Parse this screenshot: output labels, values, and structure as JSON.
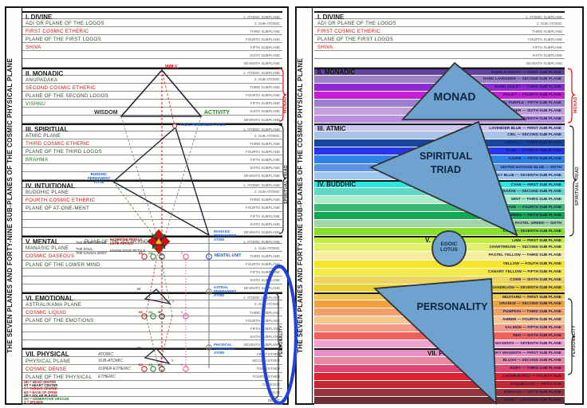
{
  "vertical_title": "THE SEVEN PLANES AND FORTY-NINE SUB-PLANES OF THE COSMIC PHYSICAL PLANE",
  "subplane_labels": [
    "1. ATOMIC SUBPLANE",
    "2. SUB-ATOMIC",
    "THIRD SUBPLANE",
    "FOURTH SUBPLANE",
    "FIFTH SUBPLANE",
    "SIXTH SUBPLANE",
    "SEVENTH SUBPLANE"
  ],
  "ether_labels": [
    "FIRST ETHER",
    "SECOND ETHER",
    "THIRD ETHER",
    "FOURTH ETHER",
    "GASEOUS",
    "LIQUID",
    "DENSE"
  ],
  "colors": {
    "red": "#c41414",
    "green": "#1a7a1a",
    "dark": "#2f4a35",
    "header": "#1c1c1c",
    "blue_label": "#1b63d6",
    "band_text": "#1a1a52"
  },
  "left_panel": {
    "sections": [
      {
        "header": "I. DIVINE",
        "rows": [
          [
            "ADI OR PLANE OF THE LOGOS",
            "dark"
          ],
          [
            "FIRST COSMIC ETHERIC",
            "red"
          ],
          [
            "PLANE OF THE FIRST LOGOS",
            "dark"
          ],
          [
            "SHIVA",
            "red"
          ],
          [
            "",
            ""
          ],
          [
            "",
            ""
          ]
        ]
      },
      {
        "header": "II. MONADIC",
        "rows": [
          [
            "ANUPADAKA",
            "dark"
          ],
          [
            "SECOND COSMIC ETHERIC",
            "red"
          ],
          [
            "PLANE OF THE SECOND LOGOS",
            "dark"
          ],
          [
            "VISHNU",
            "green"
          ],
          [
            "",
            ""
          ],
          [
            "",
            ""
          ]
        ]
      },
      {
        "header": "III. SPIRITUAL",
        "rows": [
          [
            "ATMIC PLANE",
            "dark"
          ],
          [
            "THIRD COSMIC ETHERIC",
            "red"
          ],
          [
            "PLANE OF THE THIRD LOGOS",
            "dark"
          ],
          [
            "BRAHMA",
            "green"
          ],
          [
            "",
            ""
          ],
          [
            "",
            ""
          ]
        ]
      },
      {
        "header": "IV. INTUITIONAL",
        "rows": [
          [
            "BUDDHIC PLANE",
            "dark"
          ],
          [
            "FOURTH COSMIC ETHERIC",
            "red"
          ],
          [
            "PLANE OF AT-ONE-MENT",
            "dark"
          ],
          [
            "",
            ""
          ],
          [
            "",
            ""
          ],
          [
            "",
            ""
          ]
        ]
      },
      {
        "header": "V. MENTAL",
        "header_extra": "PLANE OF THE SOLAR ANGEL",
        "rows": [
          [
            "MANASIC PLANE",
            "dark"
          ],
          [
            "COSMIC GASEOUS",
            "red"
          ],
          [
            "PLANE OF THE LOWER MIND",
            "dark"
          ],
          [
            "",
            ""
          ],
          [
            "",
            ""
          ],
          [
            "",
            ""
          ]
        ]
      },
      {
        "header": "VI. EMOTIONAL",
        "rows": [
          [
            "ASTRAL/KAMA PLANE",
            "dark"
          ],
          [
            "COSMIC LIQUID",
            "red"
          ],
          [
            "PLANE OF THE EMOTIONS",
            "dark"
          ],
          [
            "",
            ""
          ],
          [
            "",
            ""
          ],
          [
            "",
            ""
          ]
        ]
      },
      {
        "header": "VII. PHYSICAL",
        "rows": [
          [
            "PHYSICAL PLANE",
            "dark"
          ],
          [
            "COSMIC DENSE",
            "red"
          ],
          [
            "PLANE OF THE PHYSICAL",
            "dark"
          ],
          [
            "",
            ""
          ],
          [
            "",
            ""
          ],
          [
            "",
            ""
          ]
        ],
        "mid": [
          "ATOMIC",
          "SUB-ATOMIC",
          "SUPER-ETHERIC",
          "ETHERIC"
        ],
        "ether": true
      }
    ],
    "legend": [
      [
        "HD = HEAD CENTER",
        "red"
      ],
      [
        "HT = HEART CENTER",
        "header"
      ],
      [
        "T = THROAT CENTER",
        "red"
      ],
      [
        "BS = BASE OF SPINE",
        "red"
      ],
      [
        "SP = SOLAR PLEXUS",
        "header"
      ],
      [
        "GO = GENERATIVE ORGANS",
        "green"
      ],
      [
        "S = SPLEEN",
        "red"
      ]
    ],
    "marks": [
      [
        "BS",
        174,
        316,
        "#c41414"
      ],
      [
        "GO",
        186,
        316,
        "#1a7a1a"
      ],
      [
        "SP",
        198,
        316,
        "#333333"
      ],
      [
        "S",
        227,
        316,
        "#e0509a"
      ],
      [
        "HT",
        172,
        361,
        "#333333"
      ],
      [
        "T",
        216,
        377,
        "#333333"
      ],
      [
        "BS",
        174,
        390,
        "#c41414"
      ],
      [
        "GO",
        186,
        390,
        "#1a7a1a"
      ],
      [
        "SP",
        198,
        390,
        "#333333"
      ],
      [
        "S",
        227,
        390,
        "#e0509a"
      ],
      [
        "HT",
        172,
        435,
        "#333333"
      ],
      [
        "T",
        215,
        451,
        "#333333"
      ],
      [
        "BS",
        174,
        456,
        "#c41414"
      ],
      [
        "GO",
        186,
        456,
        "#1a7a1a"
      ],
      [
        "SP",
        198,
        456,
        "#333333"
      ],
      [
        "S",
        227,
        456,
        "#e0509a"
      ]
    ],
    "overlay": {
      "will": "WILL",
      "wisdom": "WISDOM",
      "activity": "ACTIVITY",
      "atmic_atom": "ATMIC PERMANENT ATOM",
      "buddhic_atom": "BUDDHIC\nPERMANENT\nATOM",
      "manasic_atom": "MANASIC\nPERMANENT\nATOM",
      "mental_unit": "MENTAL UNIT",
      "astral_atom": "ASTRAL\nPERMANENT\nATOM",
      "physical_atom": "PHYSICAL\nPERMANENT\nATOM",
      "egoic_lotus": "THE EGOIC LOTUS",
      "sacrifice": "SACRIFICE PETALS\nLOVE PETALS",
      "soul": "THE SOUL,\nTHE CAUSAL BODY",
      "knowledge": "KNOWLEDGE PETALS",
      "monad_bracket": "MONAD",
      "spiritual_triad_bracket": "SPIRITUAL TRIAD",
      "personality_bracket": "PERSONALITY"
    }
  },
  "right_panel": {
    "sections": [
      {
        "header": "II. MONADIC",
        "bands": [
          [
            "PURPLE-HEART — FIRST SUB PLANE",
            "#63419f"
          ],
          [
            "DARK LAVENDER — SECOND SUB PLANE",
            "#9a82c4"
          ],
          [
            "DARK VIOLET — THIRD SUB PLANE",
            "#8d2bd0"
          ],
          [
            "VIOLET — FOURTH SUB PLANE",
            "#c41fd4"
          ],
          [
            "DARK PASTEL PURPLE - FIFTH SUB PLANE",
            "#9d7fd0"
          ],
          [
            "LAVENDER — SIXTH SUB PLANE",
            "#c2a0dc"
          ],
          [
            "BRIGHT LAVENDER — SEVENTH SUB PLANE",
            "#b98fe0"
          ]
        ]
      },
      {
        "header": "III. ATMIC",
        "bands": [
          [
            "LAVENDER BLUE — FIRST SUB PLANE",
            "#cbc6f2"
          ],
          [
            "CIEL — SECOND SUB PLANE",
            "#aac3e6"
          ],
          [
            "COBALT — THIRD SUB PLANE",
            "#16469e"
          ],
          [
            "BLUE — FOURTH SUB PLANE",
            "#2736e8"
          ],
          [
            "AZURE — FIFTH SUB PLANE",
            "#2e83e8"
          ],
          [
            "UNITED NATIONS BLUE — SIXTH",
            "#5d92e0"
          ],
          [
            "SKY BLUE — SEVENTH SUB PLANE",
            "#9ec7f0"
          ]
        ]
      },
      {
        "header": "IV. BUDDHIC",
        "bands": [
          [
            "CYAN — FIRST SUB PLANE",
            "#28e8e0"
          ],
          [
            "TURQUOISE — SECOND SUB PLANE",
            "#62d8c8"
          ],
          [
            "MINT — THIRD SUB PLANE",
            "#abeccb"
          ],
          [
            "JADE — FOURTH SUB PLANE",
            "#3bb873"
          ],
          [
            "GREEN — FIFTH SUB PLANE",
            "#12a653"
          ],
          [
            "PASTEL GREEN — SIXTH",
            "#a3d4a3"
          ],
          [
            "LAWN — SEVENTH SUB PLANE",
            "#86df2b"
          ]
        ]
      },
      {
        "header": "V.",
        "bands": [
          [
            "LIME — FIRST SUB PLANE",
            "#c3ef3a"
          ],
          [
            "CHARTREUSE — SECOND SUB PLANE",
            "#e0f06a"
          ],
          [
            "PASTEL YELLOW — THIRD SUB PLANE",
            "#f4eda2"
          ],
          [
            "YELLOW — FOUTH SUB PLANE",
            "#f6e62b"
          ],
          [
            "CANARY YELLOW — FIFTH SUB PLANE",
            "#f4ea46"
          ],
          [
            "CORN — SIXTH SUB PLANE",
            "#eed45e"
          ],
          [
            "DANDELION — SEVENTH SUB PLANE",
            "#ecd02f"
          ]
        ]
      },
      {
        "header": "VI. EMOTIONAL",
        "bands": [
          [
            "MUSTARD — FIRST SUB PLANE",
            "#eec94f"
          ],
          [
            "ORANGE — SECOND SUB PLANE",
            "#f2a13d"
          ],
          [
            "PUMPKIN — THIRD SUB PLANE",
            "#f4a066"
          ],
          [
            "AMBER — FOURTH SUB PLANE",
            "#f6c88e"
          ],
          [
            "SALMON — FIFTH SUB PLANE",
            "#f49a86"
          ],
          [
            "RED — SIXTH SUB PLANE",
            "#ef625c"
          ],
          [
            "MAGENTA — SEVENTH SUB PLANE",
            "#f2a2ce"
          ]
        ]
      },
      {
        "header": "VII. PHYSICAL",
        "bands": [
          [
            "SKY MAGENTA — FIRST SUB PLANE",
            "#ea8ec6"
          ],
          [
            "BLUSH — SECOND SUB PLANE",
            "#e4899f"
          ],
          [
            "RUBY — THIRD SUB PLANE",
            "#dd4573"
          ],
          [
            "CADMIUM RED — FOURTH SUB",
            "#da2231"
          ],
          [
            "COQUELICOT — FIFTH SUB",
            "#c22834"
          ],
          [
            "MAROON — SIXTH SUB PLANE",
            "#97343c"
          ],
          [
            "WINE — SEVENTH SUB PLANE",
            "#6d2f33"
          ]
        ]
      }
    ],
    "shapes": {
      "monad": "MONAD",
      "spiritual_triad": "SPIRITUAL\nTRIAD",
      "personality": "PERSONALITY",
      "egoic_lotus": "EGOIC\nLOTUS"
    },
    "brackets": {
      "monad": "MONAD",
      "spiritual_triad": "SPIRITUAL TRIAD",
      "personality": "PERSONALITY"
    }
  }
}
